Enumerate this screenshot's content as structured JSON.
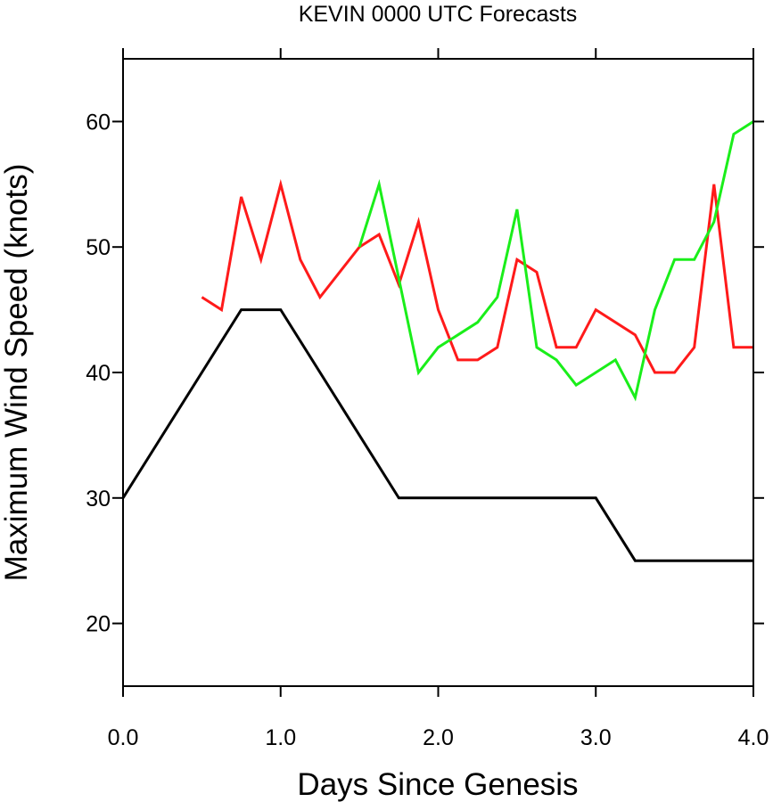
{
  "chart_data": {
    "type": "line",
    "title": "KEVIN 0000 UTC Forecasts",
    "xlabel": "Days Since Genesis",
    "ylabel": "Maximum Wind Speed (knots)",
    "xlim": [
      0,
      4
    ],
    "ylim": [
      15,
      65
    ],
    "x_ticks": [
      {
        "value": 0,
        "label": "0.0"
      },
      {
        "value": 1,
        "label": "1.0"
      },
      {
        "value": 2,
        "label": "2.0"
      },
      {
        "value": 3,
        "label": "3.0"
      },
      {
        "value": 4,
        "label": "4.0"
      }
    ],
    "y_ticks": [
      {
        "value": 20,
        "label": "20"
      },
      {
        "value": 30,
        "label": "30"
      },
      {
        "value": 40,
        "label": "40"
      },
      {
        "value": 50,
        "label": "50"
      },
      {
        "value": 60,
        "label": "60"
      }
    ],
    "grid": false,
    "legend": "none",
    "series": [
      {
        "color": "#000000",
        "x": [
          0,
          0.75,
          1.0,
          1.75,
          3.0,
          3.25,
          4.0
        ],
        "y": [
          30,
          45,
          45,
          30,
          30,
          25,
          25
        ]
      },
      {
        "color": "#ff1a1a",
        "x": [
          0.5,
          0.625,
          0.75,
          0.875,
          1.0,
          1.125,
          1.25,
          1.5,
          1.625,
          1.75,
          1.875,
          2.0,
          2.125,
          2.25,
          2.375,
          2.5,
          2.625,
          2.75,
          2.875,
          3.0,
          3.25,
          3.375,
          3.5,
          3.625,
          3.75,
          3.875,
          4.0
        ],
        "y": [
          46,
          45,
          54,
          49,
          55,
          49,
          46,
          50,
          51,
          47,
          52,
          45,
          41,
          41,
          42,
          49,
          48,
          42,
          42,
          45,
          43,
          40,
          40,
          42,
          55,
          42,
          42
        ]
      },
      {
        "color": "#1aee1a",
        "x": [
          1.5,
          1.625,
          1.875,
          2.0,
          2.125,
          2.25,
          2.375,
          2.5,
          2.625,
          2.75,
          2.875,
          3.0,
          3.125,
          3.25,
          3.375,
          3.5,
          3.625,
          3.75,
          3.875,
          4.0
        ],
        "y": [
          50,
          55,
          40,
          42,
          43,
          44,
          46,
          53,
          42,
          41,
          39,
          40,
          41,
          38,
          45,
          49,
          49,
          52,
          59,
          60
        ]
      }
    ]
  }
}
